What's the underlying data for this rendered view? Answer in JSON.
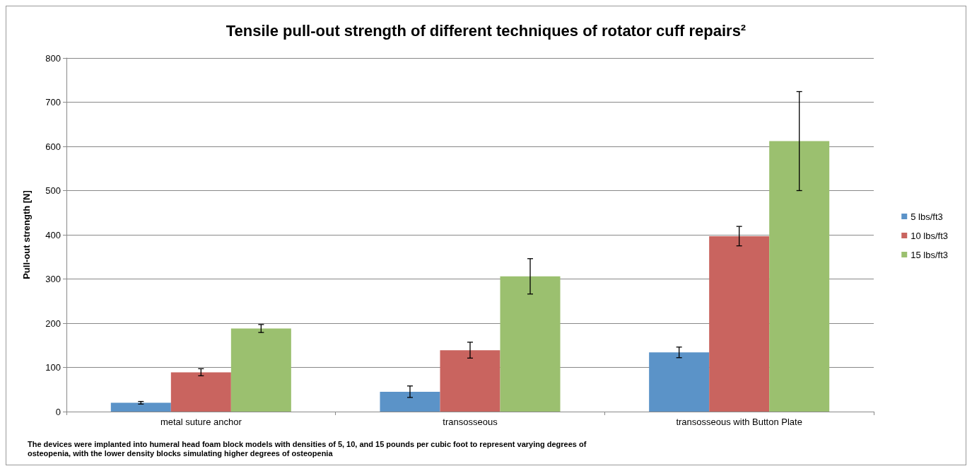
{
  "chart_data": {
    "type": "bar",
    "title": "Tensile pull-out strength of different techniques of rotator cuff repairs²",
    "ylabel": "Pull-out strength [N]",
    "categories": [
      "metal suture anchor",
      "transosseous",
      "transosseous with Button Plate"
    ],
    "series": [
      {
        "name": "5 lbs/ft3",
        "color": "#5b93c8",
        "values": [
          20,
          45,
          134
        ],
        "errors": [
          3,
          13,
          12
        ]
      },
      {
        "name": "10 lbs/ft3",
        "color": "#c9645f",
        "values": [
          89,
          139,
          397
        ],
        "errors": [
          8,
          18,
          22
        ]
      },
      {
        "name": "15 lbs/ft3",
        "color": "#9bc06f",
        "values": [
          188,
          306,
          612
        ],
        "errors": [
          9,
          40,
          112
        ]
      }
    ],
    "ylim": [
      0,
      800
    ],
    "yticks": [
      0,
      100,
      200,
      300,
      400,
      500,
      600,
      700,
      800
    ],
    "grid": "y",
    "legend": "right",
    "annotations": [
      "The devices were implanted into humeral head foam block models with densities of 5, 10, and 15 pounds per cubic foot to represent varying degrees of\nosteopenia, with the lower density blocks simulating higher degrees of osteopenia"
    ]
  }
}
